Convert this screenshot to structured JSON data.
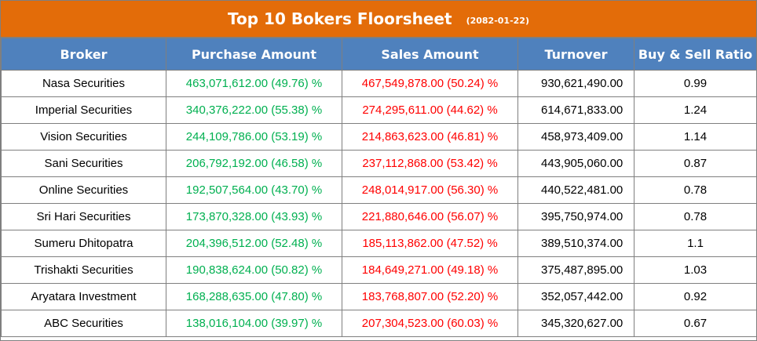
{
  "title": "Top 10 Bokers Floorsheet",
  "date": "(2082-01-22)",
  "columns": [
    "Broker",
    "Purchase Amount",
    "Sales Amount",
    "Turnover",
    "Buy & Sell Ratio"
  ],
  "rows": [
    {
      "broker": "Nasa Securities",
      "purchase": "463,071,612.00 (49.76) %",
      "sales": "467,549,878.00 (50.24) %",
      "turnover": "930,621,490.00",
      "ratio": "0.99"
    },
    {
      "broker": "Imperial Securities",
      "purchase": "340,376,222.00 (55.38) %",
      "sales": "274,295,611.00 (44.62) %",
      "turnover": "614,671,833.00",
      "ratio": "1.24"
    },
    {
      "broker": "Vision Securities",
      "purchase": "244,109,786.00 (53.19) %",
      "sales": "214,863,623.00 (46.81) %",
      "turnover": "458,973,409.00",
      "ratio": "1.14"
    },
    {
      "broker": "Sani Securities",
      "purchase": "206,792,192.00 (46.58) %",
      "sales": "237,112,868.00 (53.42) %",
      "turnover": "443,905,060.00",
      "ratio": "0.87"
    },
    {
      "broker": "Online Securities",
      "purchase": "192,507,564.00 (43.70) %",
      "sales": "248,014,917.00 (56.30) %",
      "turnover": "440,522,481.00",
      "ratio": "0.78"
    },
    {
      "broker": "Sri Hari Securities",
      "purchase": "173,870,328.00 (43.93) %",
      "sales": "221,880,646.00 (56.07) %",
      "turnover": "395,750,974.00",
      "ratio": "0.78"
    },
    {
      "broker": "Sumeru Dhitopatra",
      "purchase": "204,396,512.00 (52.48) %",
      "sales": "185,113,862.00 (47.52) %",
      "turnover": "389,510,374.00",
      "ratio": "1.1"
    },
    {
      "broker": "Trishakti Securities",
      "purchase": "190,838,624.00 (50.82) %",
      "sales": "184,649,271.00 (49.18) %",
      "turnover": "375,487,895.00",
      "ratio": "1.03"
    },
    {
      "broker": "Aryatara Investment",
      "purchase": "168,288,635.00 (47.80) %",
      "sales": "183,768,807.00 (52.20) %",
      "turnover": "352,057,442.00",
      "ratio": "0.92"
    },
    {
      "broker": "ABC Securities",
      "purchase": "138,016,104.00 (39.97) %",
      "sales": "207,304,523.00 (60.03) %",
      "turnover": "345,320,627.00",
      "ratio": "0.67"
    }
  ],
  "colors": {
    "title_bg": "#e36c09",
    "header_bg": "#4f81bd",
    "buy": "#00b050",
    "sell": "#ff0000"
  }
}
